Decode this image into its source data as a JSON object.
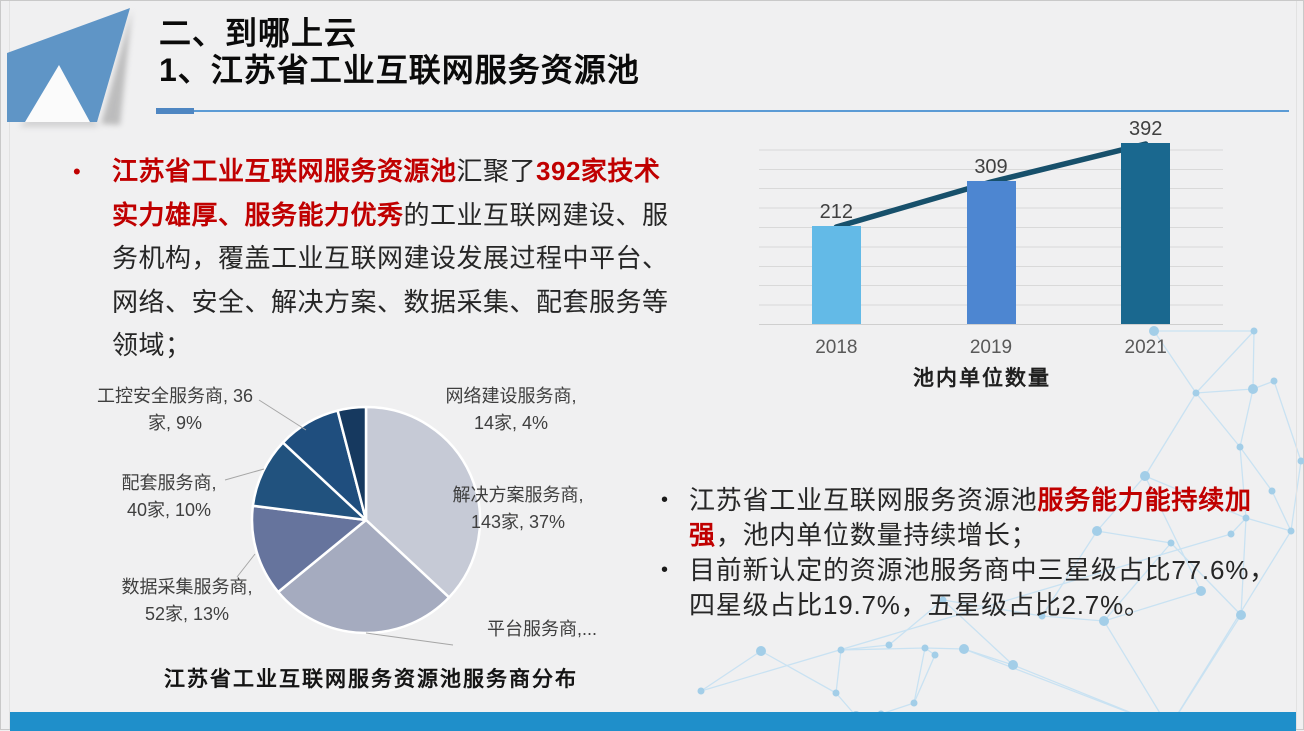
{
  "slide": {
    "header": {
      "line1": "二、到哪上云",
      "line2": "1、江苏省工业互联网服务资源池"
    },
    "left_block": {
      "marker": "•",
      "runs": [
        {
          "style": "red-bold",
          "text": "江苏省工业互联网服务资源池"
        },
        {
          "style": "normal",
          "text": "汇聚了"
        },
        {
          "style": "red-bold",
          "text": "392家技术\n实力雄厚、服务能力优秀"
        },
        {
          "style": "normal",
          "text": "的工业互联网建设、服\n务机构，覆盖工业互联网建设发展过程中平台、\n网络、安全、解决方案、数据采集、配套服务等\n领域；"
        }
      ]
    },
    "right_block": {
      "bullets": [
        {
          "marker": "•",
          "runs": [
            {
              "style": "normal",
              "text": "江苏省工业互联网服务资源池"
            },
            {
              "style": "red-bold",
              "text": "服务能力能持续加\n强"
            },
            {
              "style": "normal",
              "text": "，池内单位数量持续增长；"
            }
          ]
        },
        {
          "marker": "•",
          "runs": [
            {
              "style": "normal",
              "text": "目前新认定的资源池服务商中三星级占比77.6%，\n四星级占比19.7%，五星级占比2.7%。"
            }
          ]
        }
      ]
    },
    "colors": {
      "emphasis_red": "#C00000",
      "accent_rule_blue": "#5B9BD5",
      "accent_block_blue": "#4E86C2",
      "bottom_bar_blue": "#1F8FCA",
      "plane_blue": "#5F95C6",
      "background": "#F0F0F1"
    }
  },
  "chart_data": [
    {
      "type": "bar",
      "title": "池内单位数量",
      "categories": [
        "2018",
        "2019",
        "2021"
      ],
      "values": [
        212,
        309,
        392
      ],
      "data_labels": [
        "212",
        "309",
        "392"
      ],
      "bar_colors": [
        "#63BAE7",
        "#4D86D1",
        "#1A688F"
      ],
      "trend_line": {
        "present": true,
        "color": "#17506B",
        "values": [
          212,
          309,
          392
        ]
      },
      "xlabel": "",
      "ylabel": "",
      "ylim": [
        0,
        420
      ],
      "grid": true,
      "legend": false
    },
    {
      "type": "pie",
      "title": "江苏省工业互联网服务资源池服务商分布",
      "start_angle_deg": 0,
      "slices": [
        {
          "name": "解决方案服务商",
          "count": 143,
          "pct": 37,
          "label": "解决方案服务商,\n143家, 37%",
          "color": "#C6CAD6"
        },
        {
          "name": "平台服务商",
          "pct": 27,
          "label": "平台服务商,...",
          "color": "#A5ABBF"
        },
        {
          "name": "数据采集服务商",
          "count": 52,
          "pct": 13,
          "label": "数据采集服务商,\n52家, 13%",
          "color": "#66749D"
        },
        {
          "name": "配套服务商",
          "count": 40,
          "pct": 10,
          "label": "配套服务商,\n40家, 10%",
          "color": "#21527E"
        },
        {
          "name": "工控安全服务商",
          "count": 36,
          "pct": 9,
          "label": "工控安全服务商, 36\n家, 9%",
          "color": "#1F4E7E"
        },
        {
          "name": "网络建设服务商",
          "count": 14,
          "pct": 4,
          "label": "网络建设服务商,\n14家, 4%",
          "color": "#16395F"
        }
      ]
    }
  ]
}
